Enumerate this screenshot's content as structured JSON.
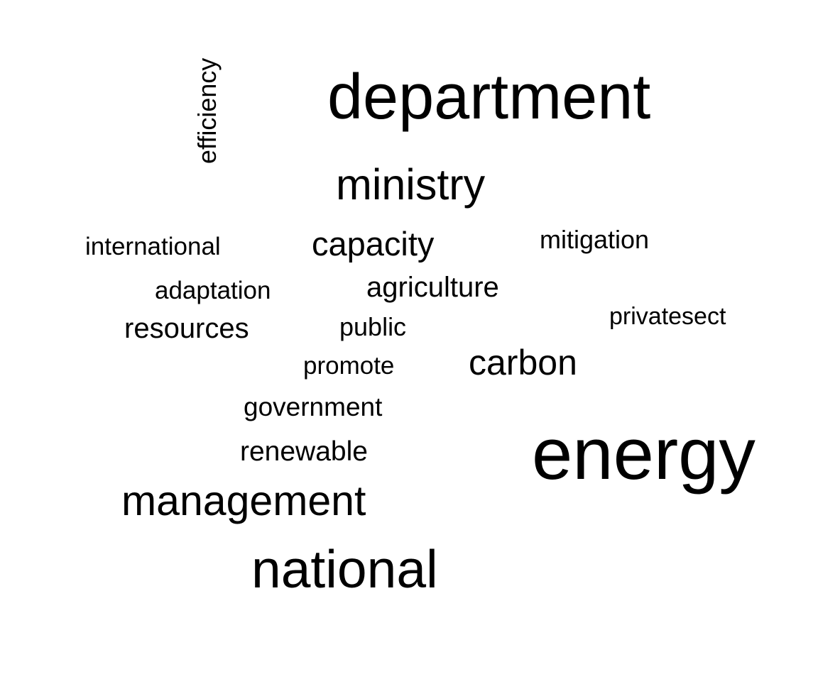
{
  "words": [
    {
      "text": "department"
    },
    {
      "text": "ministry"
    },
    {
      "text": "efficiency"
    },
    {
      "text": "international"
    },
    {
      "text": "capacity"
    },
    {
      "text": "mitigation"
    },
    {
      "text": "adaptation"
    },
    {
      "text": "agriculture"
    },
    {
      "text": "privatesect"
    },
    {
      "text": "resources"
    },
    {
      "text": "public"
    },
    {
      "text": "carbon"
    },
    {
      "text": "promote"
    },
    {
      "text": "government"
    },
    {
      "text": "energy"
    },
    {
      "text": "renewable"
    },
    {
      "text": "management"
    },
    {
      "text": "national"
    }
  ],
  "colors": {
    "background": "#ffffff",
    "text": "#000000"
  }
}
